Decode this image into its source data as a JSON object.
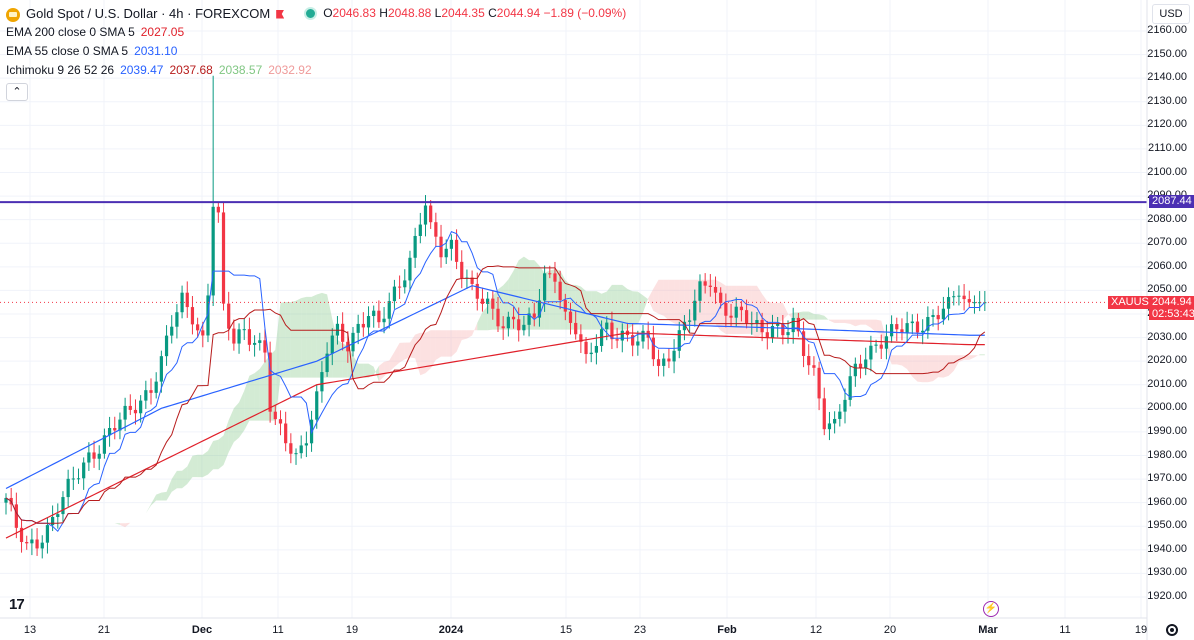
{
  "header": {
    "symbol_title": "Gold Spot / U.S. Dollar · 4h · FOREXCOM",
    "o_label": "O",
    "o_value": "2046.83",
    "h_label": "H",
    "h_value": "2048.88",
    "l_label": "L",
    "l_value": "2044.35",
    "c_label": "C",
    "c_value": "2044.94",
    "change": "−1.89 (−0.09%)"
  },
  "indicators": {
    "ema200": {
      "label": "EMA 200 close 0 SMA 5",
      "value": "2027.05",
      "color": "#e0202a"
    },
    "ema55": {
      "label": "EMA 55 close 0 SMA 5",
      "value": "2031.10",
      "color": "#2962ff"
    },
    "ichimoku": {
      "label": "Ichimoku 9 26 52 26",
      "values": [
        "2039.47",
        "2037.68",
        "2038.57",
        "2032.92"
      ],
      "colors": [
        "#2962ff",
        "#b71c1c",
        "#81c784",
        "#ef9a9a"
      ]
    }
  },
  "collapse_glyph": "⌃",
  "currency": "USD",
  "symbol_tag": "XAUUSD",
  "last_price": "2044.94",
  "countdown": "02:53:43",
  "line_price": "2087.44",
  "colors": {
    "up": "#089981",
    "down": "#f23645",
    "ema200": "#e0202a",
    "ema55": "#2962ff",
    "tenkan": "#2962ff",
    "kijun": "#b71c1c",
    "cloud_bull": "#81c784",
    "cloud_bear": "#f7a9a9",
    "hline": "#4b2fb3"
  },
  "y_ticks": [
    "2160.00",
    "2150.00",
    "2140.00",
    "2130.00",
    "2120.00",
    "2110.00",
    "2100.00",
    "2090.00",
    "2080.00",
    "2070.00",
    "2060.00",
    "2050.00",
    "2040.00",
    "2030.00",
    "2020.00",
    "2010.00",
    "2000.00",
    "1990.00",
    "1980.00",
    "1970.00",
    "1960.00",
    "1950.00",
    "1940.00",
    "1930.00",
    "1920.00"
  ],
  "x_ticks": [
    "13",
    "21",
    "Dec",
    "11",
    "19",
    "2024",
    "15",
    "23",
    "Feb",
    "12",
    "20",
    "Mar",
    "11",
    "19"
  ],
  "x_bold": [
    "Dec",
    "2024",
    "Feb",
    "Mar"
  ],
  "logo_text": "17",
  "chart_data": {
    "type": "candlestick",
    "title": "Gold Spot / U.S. Dollar · 4h · FOREXCOM",
    "ylim": [
      1915,
      2165
    ],
    "x_ticks": [
      "13",
      "21",
      "Dec",
      "11",
      "19",
      "2024",
      "15",
      "23",
      "Feb",
      "12",
      "20",
      "Mar",
      "11",
      "19"
    ],
    "close_path": [
      [
        0,
        1962
      ],
      [
        2,
        1948
      ],
      [
        4,
        1940
      ],
      [
        6,
        1944
      ],
      [
        8,
        1950
      ],
      [
        10,
        1958
      ],
      [
        12,
        1965
      ],
      [
        14,
        1972
      ],
      [
        16,
        1980
      ],
      [
        18,
        1985
      ],
      [
        20,
        1990
      ],
      [
        22,
        1994
      ],
      [
        24,
        1998
      ],
      [
        26,
        2004
      ],
      [
        28,
        2010
      ],
      [
        30,
        2020
      ],
      [
        32,
        2035
      ],
      [
        34,
        2045
      ],
      [
        36,
        2040
      ],
      [
        38,
        2030
      ],
      [
        39,
        2050
      ],
      [
        40,
        2088
      ],
      [
        41,
        2080
      ],
      [
        42,
        2040
      ],
      [
        44,
        2028
      ],
      [
        46,
        2034
      ],
      [
        48,
        2030
      ],
      [
        50,
        2024
      ],
      [
        51,
        2000
      ],
      [
        52,
        1992
      ],
      [
        54,
        1986
      ],
      [
        56,
        1980
      ],
      [
        58,
        1990
      ],
      [
        60,
        2004
      ],
      [
        62,
        2024
      ],
      [
        64,
        2032
      ],
      [
        66,
        2028
      ],
      [
        68,
        2036
      ],
      [
        70,
        2040
      ],
      [
        72,
        2034
      ],
      [
        74,
        2044
      ],
      [
        76,
        2054
      ],
      [
        78,
        2064
      ],
      [
        80,
        2080
      ],
      [
        81,
        2086
      ],
      [
        82,
        2074
      ],
      [
        84,
        2066
      ],
      [
        86,
        2070
      ],
      [
        88,
        2060
      ],
      [
        90,
        2050
      ],
      [
        92,
        2044
      ],
      [
        94,
        2040
      ],
      [
        96,
        2036
      ],
      [
        98,
        2040
      ],
      [
        100,
        2034
      ],
      [
        102,
        2038
      ],
      [
        104,
        2054
      ],
      [
        106,
        2058
      ],
      [
        108,
        2040
      ],
      [
        110,
        2034
      ],
      [
        112,
        2018
      ],
      [
        114,
        2028
      ],
      [
        116,
        2036
      ],
      [
        118,
        2032
      ],
      [
        120,
        2030
      ],
      [
        122,
        2026
      ],
      [
        124,
        2030
      ],
      [
        126,
        2018
      ],
      [
        128,
        2024
      ],
      [
        130,
        2030
      ],
      [
        132,
        2038
      ],
      [
        134,
        2050
      ],
      [
        136,
        2056
      ],
      [
        138,
        2044
      ],
      [
        140,
        2040
      ],
      [
        142,
        2038
      ],
      [
        144,
        2036
      ],
      [
        146,
        2034
      ],
      [
        148,
        2036
      ],
      [
        150,
        2032
      ],
      [
        152,
        2034
      ],
      [
        154,
        2024
      ],
      [
        156,
        2016
      ],
      [
        158,
        1996
      ],
      [
        160,
        1992
      ],
      [
        162,
        2004
      ],
      [
        164,
        2016
      ],
      [
        166,
        2024
      ],
      [
        168,
        2028
      ],
      [
        170,
        2030
      ],
      [
        172,
        2032
      ],
      [
        174,
        2034
      ],
      [
        176,
        2036
      ],
      [
        178,
        2038
      ],
      [
        180,
        2040
      ],
      [
        182,
        2042
      ],
      [
        184,
        2050
      ],
      [
        185,
        2046
      ],
      [
        186,
        2045
      ]
    ],
    "ema200_path": [
      [
        0,
        1945
      ],
      [
        60,
        2010
      ],
      [
        120,
        2032
      ],
      [
        186,
        2027
      ]
    ],
    "ema55_path": [
      [
        0,
        1966
      ],
      [
        30,
        2000
      ],
      [
        60,
        2020
      ],
      [
        90,
        2052
      ],
      [
        120,
        2036
      ],
      [
        150,
        2034
      ],
      [
        186,
        2031
      ]
    ],
    "horizontal_line": 2087.44,
    "last_price": 2044.94
  }
}
